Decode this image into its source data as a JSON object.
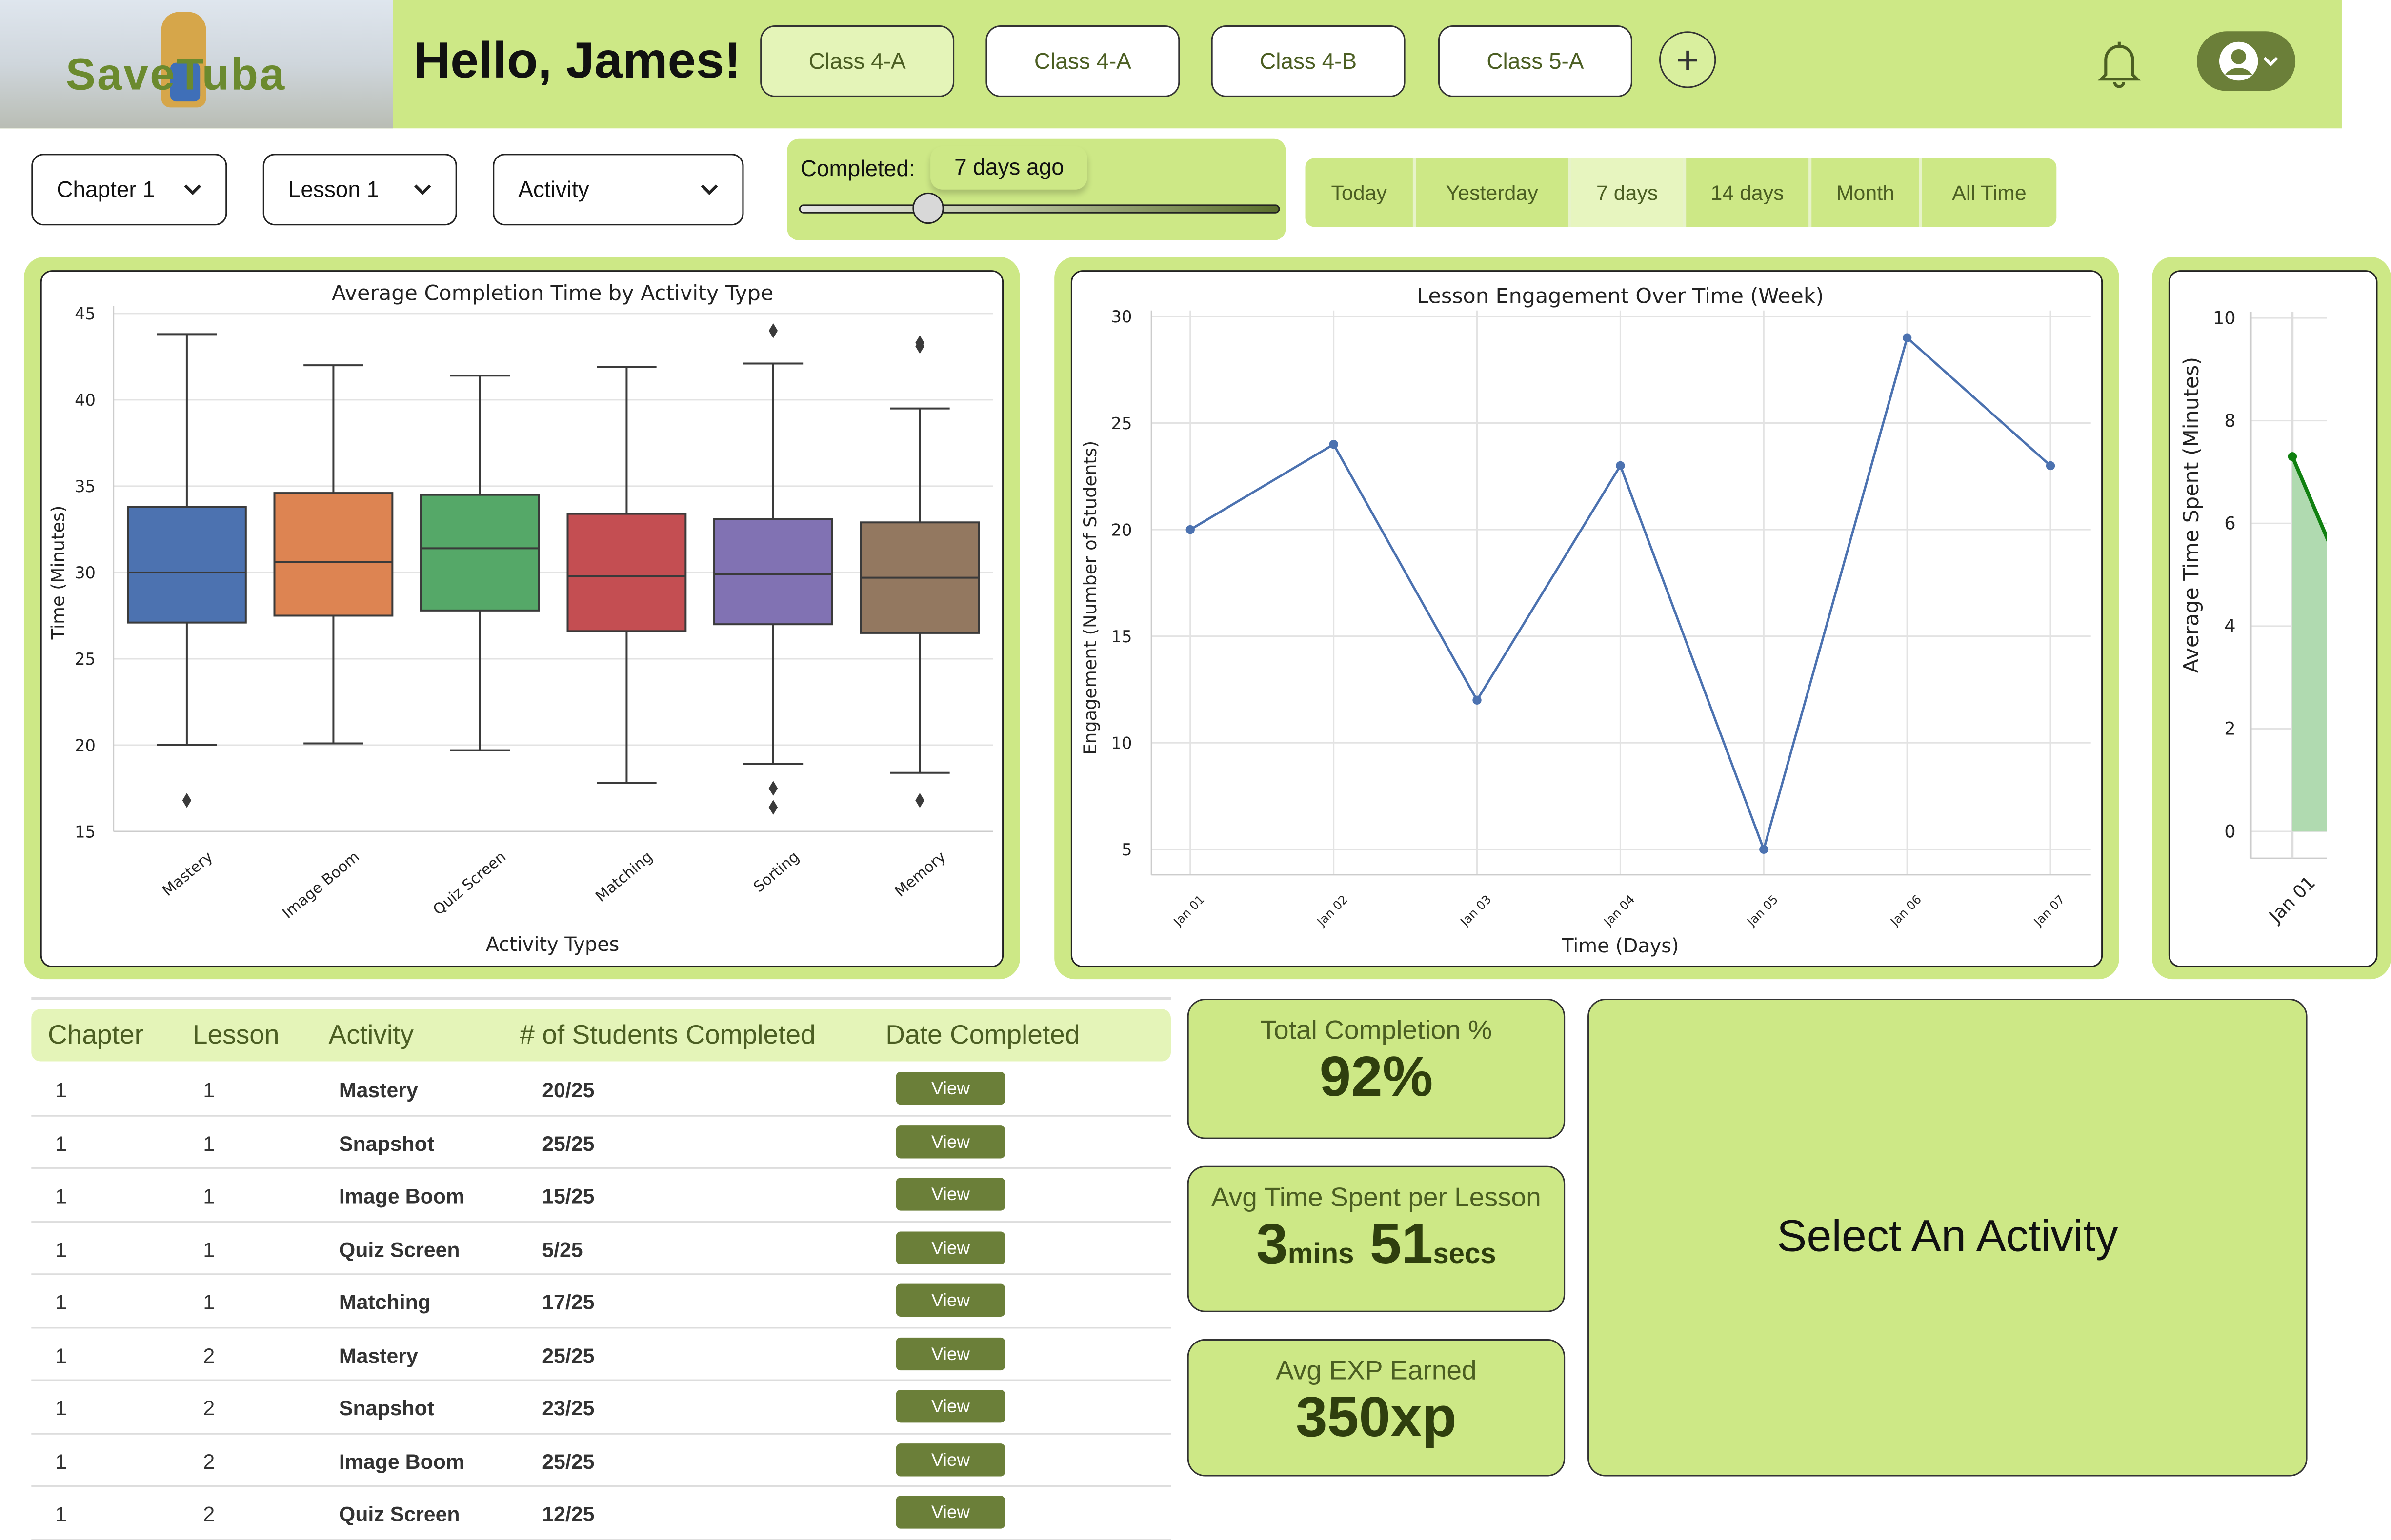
{
  "header": {
    "logo_text": "SaveTuba",
    "greeting": "Hello, James!",
    "classes": [
      {
        "label": "Class 4-A",
        "active": true
      },
      {
        "label": "Class 4-A"
      },
      {
        "label": "Class 4-B"
      },
      {
        "label": "Class 5-A"
      }
    ],
    "add_icon": "plus-icon",
    "bell_icon": "bell-icon",
    "profile_icon": "user-circle-icon"
  },
  "filters": {
    "chapter": "Chapter 1",
    "lesson": "Lesson 1",
    "activity": "Activity",
    "completed_label": "Completed:",
    "completed_value": "7 days ago",
    "slider_fraction": 0.26,
    "time_tabs": [
      "Today",
      "Yesterday",
      "7 days",
      "14 days",
      "Month",
      "All Time"
    ],
    "active_time_tab": "7 days"
  },
  "colors": {
    "accent": "#cde886",
    "accent_light": "#e4f4b8",
    "olive": "#6b7f39",
    "text_olive": "#4b5e22"
  },
  "chart_data": [
    {
      "type": "box",
      "title": "Average Completion Time by Activity Type",
      "xlabel": "Activity Types",
      "ylabel": "Time (Minutes)",
      "ylim": [
        15,
        45
      ],
      "yticks": [
        15,
        20,
        25,
        30,
        35,
        40,
        45
      ],
      "grid": true,
      "categories": [
        "Mastery",
        "Image Boom",
        "Quiz Screen",
        "Matching",
        "Sorting",
        "Memory"
      ],
      "boxes": [
        {
          "min": 20,
          "q1": 27.1,
          "median": 30,
          "q3": 33.8,
          "max": 43.8,
          "outliers": [
            16.8
          ],
          "color": "#4c72b0"
        },
        {
          "min": 20.1,
          "q1": 27.5,
          "median": 30.6,
          "q3": 34.6,
          "max": 42,
          "outliers": [],
          "color": "#dd8452"
        },
        {
          "min": 19.7,
          "q1": 27.8,
          "median": 31.4,
          "q3": 34.5,
          "max": 41.4,
          "outliers": [],
          "color": "#55a868"
        },
        {
          "min": 17.8,
          "q1": 26.6,
          "median": 29.8,
          "q3": 33.4,
          "max": 41.9,
          "outliers": [],
          "color": "#c44e52"
        },
        {
          "min": 18.9,
          "q1": 27,
          "median": 29.9,
          "q3": 33.1,
          "max": 42.1,
          "outliers": [
            44,
            17.5,
            16.4
          ],
          "color": "#8172b3"
        },
        {
          "min": 18.4,
          "q1": 26.5,
          "median": 29.7,
          "q3": 32.9,
          "max": 39.5,
          "outliers": [
            43.1,
            43.3,
            16.8
          ],
          "color": "#937860"
        }
      ]
    },
    {
      "type": "line",
      "title": "Lesson Engagement Over Time (Week)",
      "xlabel": "Time (Days)",
      "ylabel": "Engagement (Number of Students)",
      "ylim": [
        5,
        30
      ],
      "yticks": [
        5,
        10,
        15,
        20,
        25,
        30
      ],
      "grid": true,
      "categories": [
        "Jan 01",
        "Jan 02",
        "Jan 03",
        "Jan 04",
        "Jan 05",
        "Jan 06",
        "Jan 07"
      ],
      "values": [
        20,
        24,
        12,
        23,
        5,
        29,
        23
      ],
      "color": "#4c72b0"
    },
    {
      "type": "area",
      "ylabel": "Average Time Spent (Minutes)",
      "ylim": [
        0,
        10
      ],
      "yticks": [
        0,
        2,
        4,
        6,
        8,
        10
      ],
      "grid": true,
      "categories": [
        "Jan 01"
      ],
      "values": [
        7.3
      ],
      "color": "#108010"
    }
  ],
  "table": {
    "headers": [
      "Chapter",
      "Lesson",
      "Activity",
      "# of Students Completed",
      "Date Completed"
    ],
    "rows": [
      {
        "chapter": "1",
        "lesson": "1",
        "activity": "Mastery",
        "completed": "20/25",
        "action": "View"
      },
      {
        "chapter": "1",
        "lesson": "1",
        "activity": "Snapshot",
        "completed": "25/25",
        "action": "View"
      },
      {
        "chapter": "1",
        "lesson": "1",
        "activity": "Image Boom",
        "completed": "15/25",
        "action": "View"
      },
      {
        "chapter": "1",
        "lesson": "1",
        "activity": "Quiz Screen",
        "completed": "5/25",
        "action": "View"
      },
      {
        "chapter": "1",
        "lesson": "1",
        "activity": "Matching",
        "completed": "17/25",
        "action": "View"
      },
      {
        "chapter": "1",
        "lesson": "2",
        "activity": "Mastery",
        "completed": "25/25",
        "action": "View"
      },
      {
        "chapter": "1",
        "lesson": "2",
        "activity": "Snapshot",
        "completed": "23/25",
        "action": "View"
      },
      {
        "chapter": "1",
        "lesson": "2",
        "activity": "Image Boom",
        "completed": "25/25",
        "action": "View"
      },
      {
        "chapter": "1",
        "lesson": "2",
        "activity": "Quiz Screen",
        "completed": "12/25",
        "action": "View"
      }
    ]
  },
  "stats": {
    "completion_title": "Total Completion %",
    "completion_value": "92%",
    "avg_time_title": "Avg Time Spent per Lesson",
    "avg_time_mins": "3",
    "mins_unit": "mins",
    "avg_time_secs": "51",
    "secs_unit": "secs",
    "exp_title": "Avg EXP Earned",
    "exp_value": "350xp"
  },
  "detail": {
    "placeholder": "Select An Activity"
  }
}
